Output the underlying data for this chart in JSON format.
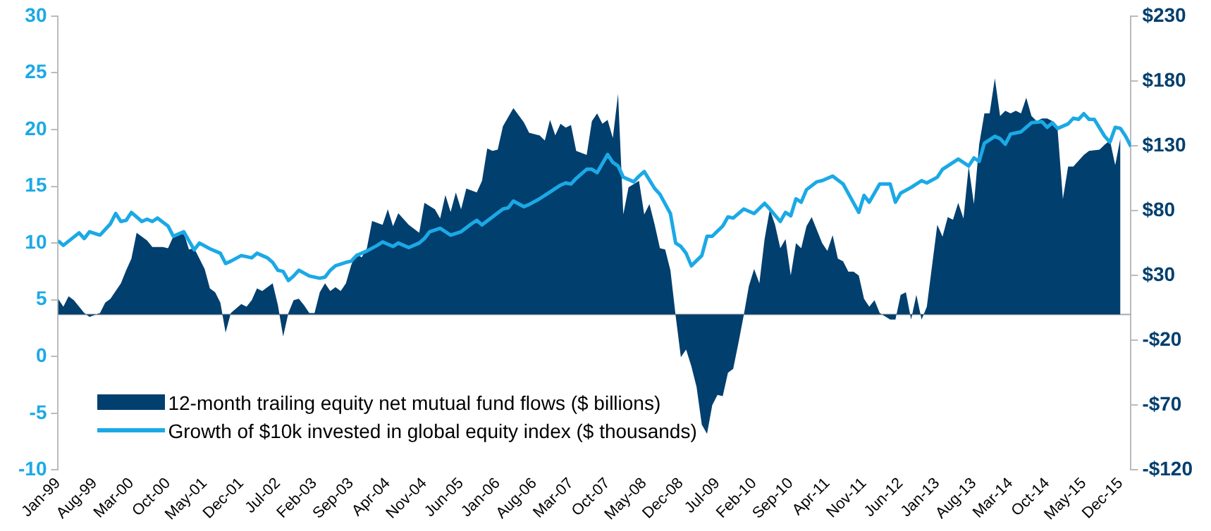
{
  "chart_data": {
    "type": "line",
    "marker": "none",
    "grid": false,
    "legend": "bottom left",
    "xlim": [
      "1999-01",
      "2016-02"
    ],
    "xticks": [
      {
        "value": "1999-01",
        "label": "Jan-99"
      },
      {
        "value": "1999-08",
        "label": "Aug-99"
      },
      {
        "value": "2000-03",
        "label": "Mar-00"
      },
      {
        "value": "2000-10",
        "label": "Oct-00"
      },
      {
        "value": "2001-05",
        "label": "May-01"
      },
      {
        "value": "2001-12",
        "label": "Dec-01"
      },
      {
        "value": "2002-07",
        "label": "Jul-02"
      },
      {
        "value": "2003-02",
        "label": "Feb-03"
      },
      {
        "value": "2003-09",
        "label": "Sep-03"
      },
      {
        "value": "2004-04",
        "label": "Apr-04"
      },
      {
        "value": "2004-11",
        "label": "Nov-04"
      },
      {
        "value": "2005-06",
        "label": "Jun-05"
      },
      {
        "value": "2006-01",
        "label": "Jan-06"
      },
      {
        "value": "2006-08",
        "label": "Aug-06"
      },
      {
        "value": "2007-03",
        "label": "Mar-07"
      },
      {
        "value": "2007-10",
        "label": "Oct-07"
      },
      {
        "value": "2008-05",
        "label": "May-08"
      },
      {
        "value": "2008-12",
        "label": "Dec-08"
      },
      {
        "value": "2009-07",
        "label": "Jul-09"
      },
      {
        "value": "2010-02",
        "label": "Feb-10"
      },
      {
        "value": "2010-09",
        "label": "Sep-10"
      },
      {
        "value": "2011-04",
        "label": "Apr-11"
      },
      {
        "value": "2011-11",
        "label": "Nov-11"
      },
      {
        "value": "2012-06",
        "label": "Jun-12"
      },
      {
        "value": "2013-01",
        "label": "Jan-13"
      },
      {
        "value": "2013-08",
        "label": "Aug-13"
      },
      {
        "value": "2014-03",
        "label": "Mar-14"
      },
      {
        "value": "2014-10",
        "label": "Oct-14"
      },
      {
        "value": "2015-05",
        "label": "May-15"
      },
      {
        "value": "2015-12",
        "label": "Dec-15"
      }
    ],
    "ylim": [
      -10,
      30
    ],
    "yticks": [
      -10,
      -5,
      0,
      5,
      10,
      15,
      20,
      25,
      30
    ],
    "y2lim": [
      -120,
      230
    ],
    "y2ticks": [
      {
        "value": -120,
        "label": "-$120"
      },
      {
        "value": -70,
        "label": "-$70"
      },
      {
        "value": -20,
        "label": "-$20"
      },
      {
        "value": 30,
        "label": "$30"
      },
      {
        "value": 80,
        "label": "$80"
      },
      {
        "value": 130,
        "label": "$130"
      },
      {
        "value": 180,
        "label": "$180"
      },
      {
        "value": 230,
        "label": "$230"
      }
    ],
    "series": [
      {
        "name": "12-month trailing equity net mutual fund flows ($ billions)",
        "type": "area",
        "axis": "y2",
        "color": "#003f6e",
        "x": [
          "1999-01",
          "1999-02",
          "1999-03",
          "1999-04",
          "1999-06",
          "1999-07",
          "1999-09",
          "1999-10",
          "1999-11",
          "2000-01",
          "2000-02",
          "2000-03",
          "2000-04",
          "2000-06",
          "2000-07",
          "2000-09",
          "2000-10",
          "2000-11",
          "2001-01",
          "2001-02",
          "2001-03",
          "2001-05",
          "2001-06",
          "2001-07",
          "2001-08",
          "2001-09",
          "2001-10",
          "2001-12",
          "2002-01",
          "2002-02",
          "2002-03",
          "2002-04",
          "2002-06",
          "2002-07",
          "2002-08",
          "2002-09",
          "2002-10",
          "2002-11",
          "2002-12",
          "2003-01",
          "2003-02",
          "2003-03",
          "2003-04",
          "2003-05",
          "2003-06",
          "2003-07",
          "2003-08",
          "2003-09",
          "2003-10",
          "2003-11",
          "2003-12",
          "2004-01",
          "2004-03",
          "2004-04",
          "2004-05",
          "2004-06",
          "2004-08",
          "2004-10",
          "2004-11",
          "2005-01",
          "2005-02",
          "2005-03",
          "2005-04",
          "2005-05",
          "2005-06",
          "2005-07",
          "2005-09",
          "2005-10",
          "2005-11",
          "2005-12",
          "2006-01",
          "2006-02",
          "2006-04",
          "2006-06",
          "2006-07",
          "2006-09",
          "2006-10",
          "2006-11",
          "2006-12",
          "2007-01",
          "2007-02",
          "2007-03",
          "2007-04",
          "2007-06",
          "2007-07",
          "2007-08",
          "2007-09",
          "2007-10",
          "2007-11",
          "2007-12",
          "2008-01",
          "2008-02",
          "2008-04",
          "2008-05",
          "2008-06",
          "2008-07",
          "2008-08",
          "2008-09",
          "2008-10",
          "2008-11",
          "2008-12",
          "2009-01",
          "2009-02",
          "2009-03",
          "2009-04",
          "2009-05",
          "2009-06",
          "2009-07",
          "2009-08",
          "2009-09",
          "2009-10",
          "2009-11",
          "2009-12",
          "2010-01",
          "2010-02",
          "2010-03",
          "2010-04",
          "2010-05",
          "2010-06",
          "2010-07",
          "2010-08",
          "2010-09",
          "2010-10",
          "2010-11",
          "2010-12",
          "2011-01",
          "2011-03",
          "2011-04",
          "2011-05",
          "2011-06",
          "2011-07",
          "2011-08",
          "2011-09",
          "2011-10",
          "2011-11",
          "2011-12",
          "2012-01",
          "2012-02",
          "2012-04",
          "2012-05",
          "2012-06",
          "2012-07",
          "2012-08",
          "2012-09",
          "2012-10",
          "2012-11",
          "2013-01",
          "2013-02",
          "2013-03",
          "2013-04",
          "2013-05",
          "2013-06",
          "2013-07",
          "2013-08",
          "2013-09",
          "2013-10",
          "2013-11",
          "2013-12",
          "2014-01",
          "2014-02",
          "2014-03",
          "2014-04",
          "2014-05",
          "2014-06",
          "2014-07",
          "2014-08",
          "2014-09",
          "2014-10",
          "2014-11",
          "2014-12",
          "2015-01",
          "2015-02",
          "2015-03",
          "2015-05",
          "2015-06",
          "2015-08",
          "2015-09",
          "2015-10",
          "2015-11",
          "2015-12"
        ],
        "values": [
          12,
          6,
          14,
          11,
          1,
          -2,
          1,
          9,
          12,
          24,
          34,
          43,
          63,
          57,
          52,
          52,
          51,
          60,
          63,
          50,
          51,
          35,
          20,
          17,
          9,
          -14,
          1,
          8,
          6,
          11,
          20,
          18,
          24,
          7,
          -17,
          1,
          11,
          12,
          7,
          1,
          1,
          17,
          24,
          18,
          21,
          18,
          24,
          38,
          47,
          44,
          51,
          72,
          69,
          81,
          68,
          78,
          69,
          63,
          86,
          81,
          74,
          92,
          79,
          94,
          81,
          97,
          94,
          103,
          128,
          126,
          127,
          145,
          159,
          148,
          140,
          138,
          134,
          150,
          138,
          147,
          144,
          146,
          126,
          123,
          149,
          155,
          147,
          150,
          136,
          170,
          77,
          98,
          103,
          77,
          85,
          69,
          51,
          50,
          34,
          -1,
          -33,
          -27,
          -40,
          -56,
          -85,
          -92,
          -70,
          -62,
          -63,
          -45,
          -42,
          -22,
          -1,
          22,
          35,
          24,
          58,
          81,
          69,
          51,
          58,
          30,
          55,
          51,
          68,
          75,
          55,
          49,
          61,
          43,
          41,
          33,
          33,
          30,
          12,
          6,
          11,
          1,
          -4,
          -4,
          15,
          17,
          -4,
          15,
          -4,
          6,
          69,
          60,
          75,
          73,
          86,
          74,
          114,
          85,
          131,
          155,
          155,
          182,
          153,
          157,
          155,
          157,
          155,
          167,
          153,
          149,
          151,
          151,
          149,
          142,
          89,
          114,
          114,
          123,
          126,
          127,
          131,
          134,
          115,
          136
        ]
      },
      {
        "name": "Growth of $10k invested in global equity index ($ thousands)",
        "type": "line",
        "color": "#1ba9e6",
        "x": [
          "1999-01",
          "1999-02",
          "1999-05",
          "1999-06",
          "1999-07",
          "1999-09",
          "1999-11",
          "1999-12",
          "2000-01",
          "2000-02",
          "2000-03",
          "2000-05",
          "2000-06",
          "2000-07",
          "2000-08",
          "2000-10",
          "2000-11",
          "2001-01",
          "2001-03",
          "2001-04",
          "2001-06",
          "2001-08",
          "2001-09",
          "2001-10",
          "2001-12",
          "2002-02",
          "2002-03",
          "2002-05",
          "2002-06",
          "2002-07",
          "2002-08",
          "2002-09",
          "2002-10",
          "2002-11",
          "2003-01",
          "2003-03",
          "2003-04",
          "2003-05",
          "2003-06",
          "2003-08",
          "2003-09",
          "2003-10",
          "2003-12",
          "2004-02",
          "2004-03",
          "2004-05",
          "2004-06",
          "2004-08",
          "2004-10",
          "2004-11",
          "2004-12",
          "2005-02",
          "2005-03",
          "2005-04",
          "2005-06",
          "2005-08",
          "2005-09",
          "2005-10",
          "2005-12",
          "2006-02",
          "2006-03",
          "2006-04",
          "2006-06",
          "2006-07",
          "2006-09",
          "2006-11",
          "2007-01",
          "2007-02",
          "2007-03",
          "2007-04",
          "2007-06",
          "2007-07",
          "2007-08",
          "2007-09",
          "2007-10",
          "2007-11",
          "2007-12",
          "2008-01",
          "2008-03",
          "2008-04",
          "2008-05",
          "2008-07",
          "2008-08",
          "2008-10",
          "2008-11",
          "2008-12",
          "2009-01",
          "2009-02",
          "2009-04",
          "2009-05",
          "2009-06",
          "2009-08",
          "2009-09",
          "2009-10",
          "2009-12",
          "2010-02",
          "2010-04",
          "2010-05",
          "2010-07",
          "2010-08",
          "2010-09",
          "2010-10",
          "2010-11",
          "2010-12",
          "2011-02",
          "2011-03",
          "2011-05",
          "2011-07",
          "2011-10",
          "2011-11",
          "2011-12",
          "2012-02",
          "2012-04",
          "2012-05",
          "2012-06",
          "2012-08",
          "2012-10",
          "2012-11",
          "2013-01",
          "2013-02",
          "2013-03",
          "2013-05",
          "2013-07",
          "2013-08",
          "2013-09",
          "2013-10",
          "2013-12",
          "2014-01",
          "2014-02",
          "2014-03",
          "2014-05",
          "2014-07",
          "2014-09",
          "2014-10",
          "2014-11",
          "2014-12",
          "2015-02",
          "2015-03",
          "2015-04",
          "2015-05",
          "2015-06",
          "2015-07",
          "2015-09",
          "2015-10",
          "2015-11",
          "2015-12",
          "2016-01",
          "2016-02"
        ],
        "values": [
          10.2,
          9.8,
          10.9,
          10.4,
          11.0,
          10.7,
          11.7,
          12.6,
          11.9,
          12.0,
          12.7,
          11.9,
          12.1,
          11.9,
          12.2,
          11.5,
          10.6,
          11.0,
          9.4,
          10.0,
          9.5,
          9.1,
          8.2,
          8.4,
          8.9,
          8.7,
          9.1,
          8.7,
          8.3,
          7.6,
          7.5,
          6.7,
          7.1,
          7.6,
          7.1,
          6.9,
          7.0,
          7.6,
          8.0,
          8.3,
          8.4,
          8.9,
          9.3,
          9.8,
          10.1,
          9.7,
          10.0,
          9.6,
          10.0,
          10.4,
          11.0,
          11.3,
          11.0,
          10.7,
          11.0,
          11.7,
          12.0,
          11.6,
          12.3,
          13.0,
          13.1,
          13.7,
          13.2,
          13.4,
          13.9,
          14.5,
          15.1,
          15.3,
          15.2,
          15.7,
          16.5,
          16.5,
          16.2,
          17.0,
          17.8,
          17.1,
          16.8,
          15.8,
          15.4,
          15.9,
          16.3,
          14.8,
          14.3,
          12.6,
          10.0,
          9.7,
          9.1,
          8.0,
          8.9,
          10.6,
          10.6,
          11.5,
          12.3,
          12.2,
          13.0,
          12.6,
          13.5,
          13.0,
          11.9,
          12.7,
          12.4,
          13.9,
          13.6,
          14.7,
          15.4,
          15.5,
          15.9,
          15.2,
          12.7,
          14.2,
          13.6,
          15.2,
          15.2,
          13.6,
          14.4,
          14.9,
          15.5,
          15.3,
          15.8,
          16.5,
          16.8,
          17.4,
          16.8,
          17.5,
          17.2,
          18.8,
          19.4,
          19.2,
          18.7,
          19.6,
          19.8,
          20.6,
          20.7,
          20.2,
          20.6,
          20.1,
          20.5,
          21.0,
          20.9,
          21.4,
          20.9,
          20.9,
          19.4,
          18.9,
          20.2,
          20.1,
          19.4,
          18.5
        ]
      }
    ]
  }
}
